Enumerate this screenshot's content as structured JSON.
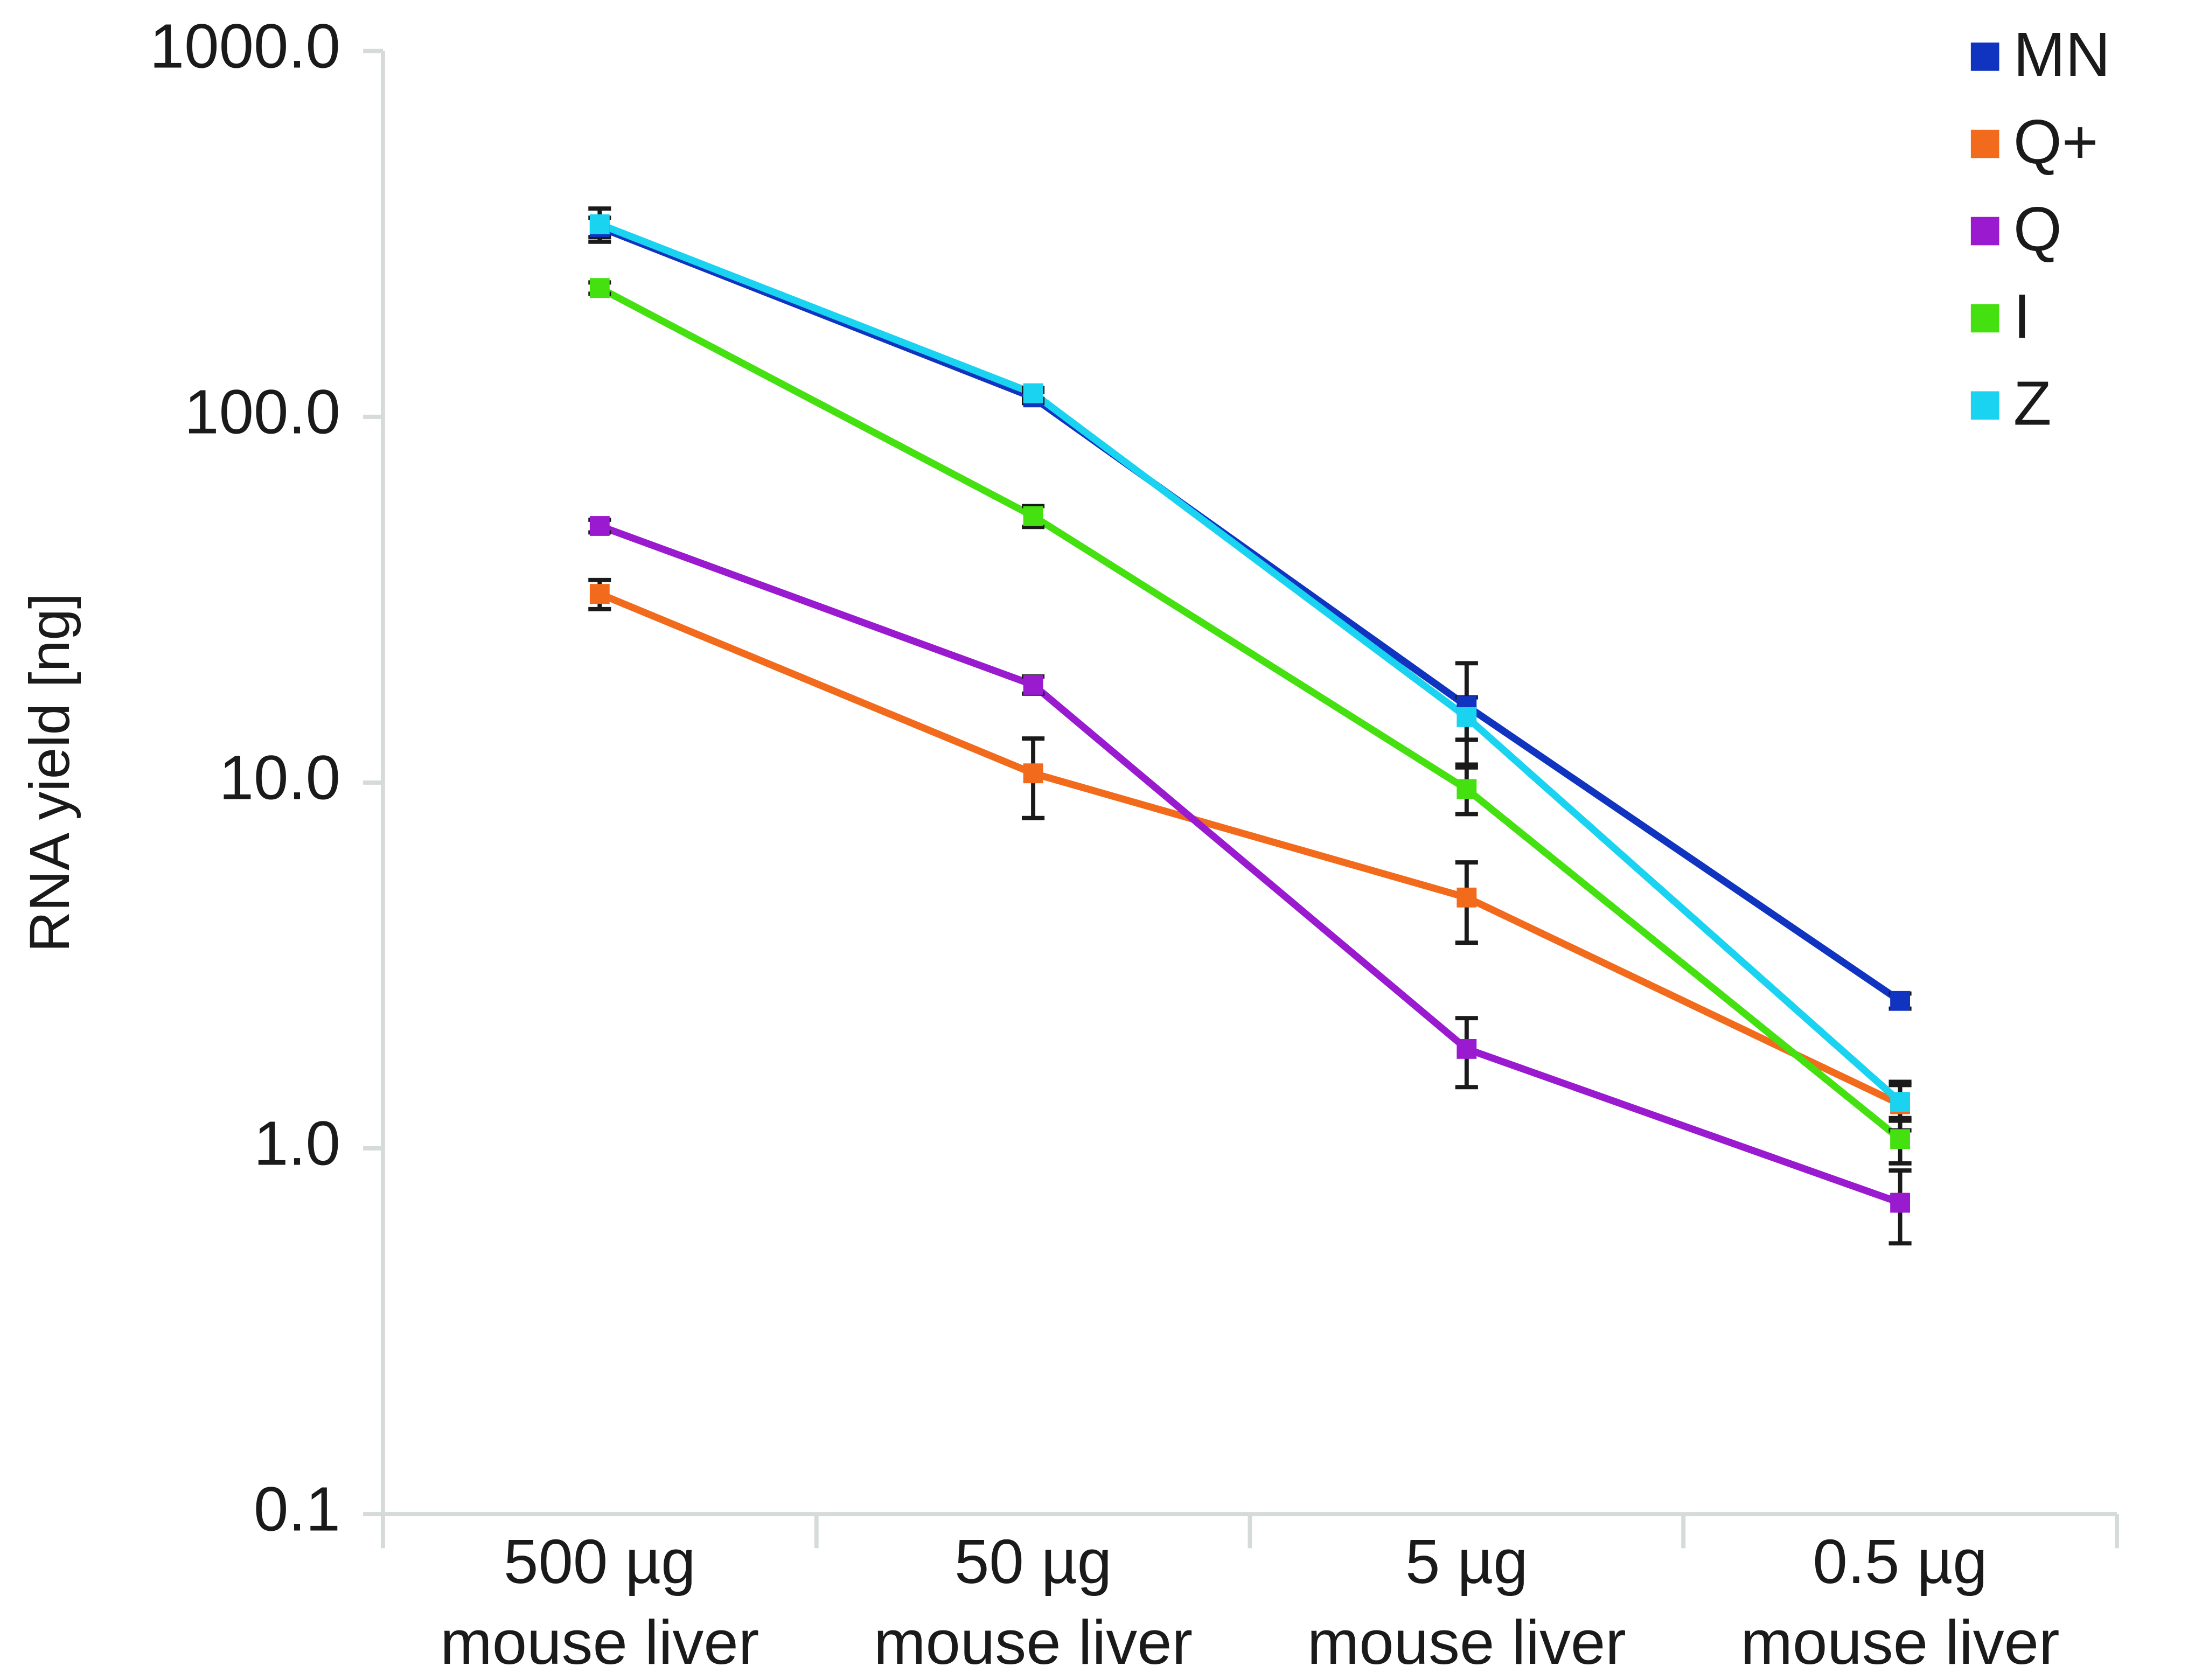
{
  "chart_data": {
    "type": "line",
    "y_label": "RNA yield [ng]",
    "categories": [
      [
        "500 µg",
        "mouse liver"
      ],
      [
        "50 µg",
        "mouse liver"
      ],
      [
        "5 µg",
        "mouse liver"
      ],
      [
        "0.5 µg",
        "mouse liver"
      ]
    ],
    "ylog": true,
    "ylim": [
      0.1,
      1000
    ],
    "yticks": [
      0.1,
      {
        "value": 1,
        "label": "1.0"
      },
      {
        "value": 10,
        "label": "10.0"
      },
      {
        "value": 100,
        "label": "100.0"
      },
      {
        "value": 1000,
        "label": "1000.0"
      }
    ],
    "legend": "upper right",
    "series": [
      {
        "name": "MN",
        "color": "#1033c0",
        "values": [
          330,
          113,
          16.2,
          2.53
        ],
        "errors": [
          20,
          4,
          5,
          0.12
        ]
      },
      {
        "name": "Q+",
        "color": "#f26a1b",
        "values": [
          32.8,
          10.6,
          4.85,
          1.32
        ],
        "errors": [
          3,
          2.6,
          1.2,
          0.2
        ]
      },
      {
        "name": "Q",
        "color": "#9a1ad0",
        "values": [
          50.3,
          18.5,
          1.87,
          0.71
        ],
        "errors": [
          2,
          1,
          0.4,
          0.16
        ]
      },
      {
        "name": "I",
        "color": "#44e010",
        "values": [
          225,
          53.5,
          9.6,
          1.06
        ],
        "errors": [
          8,
          3.5,
          1.4,
          0.15
        ]
      },
      {
        "name": "Z",
        "color": "#19d3f0",
        "values": [
          336,
          116,
          15.1,
          1.34
        ],
        "errors": [
          35,
          4,
          2,
          0.15
        ]
      }
    ]
  }
}
